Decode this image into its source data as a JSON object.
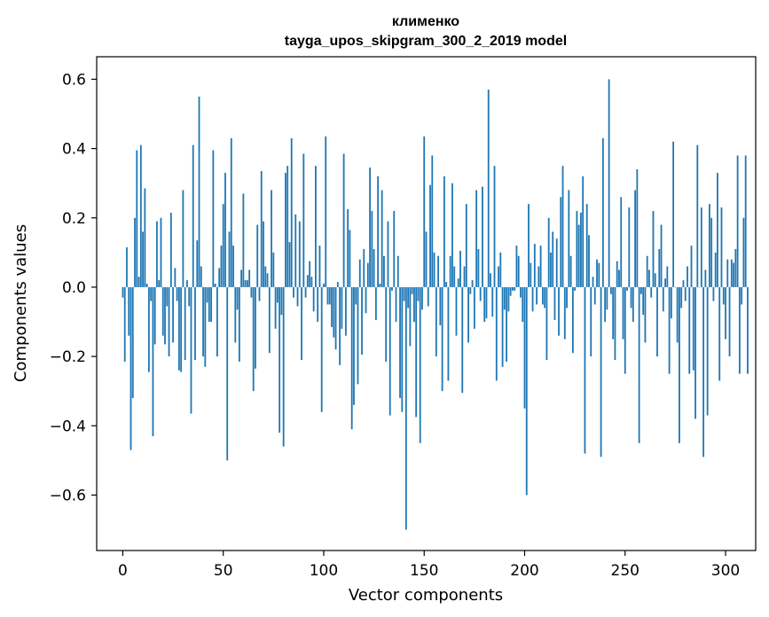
{
  "chart_data": {
    "type": "bar",
    "title": "клименко",
    "subtitle": "tayga_upos_skipgram_300_2_2019 model",
    "xlabel": "Vector components",
    "ylabel": "Components values",
    "xlim": [
      -13,
      315
    ],
    "ylim": [
      -0.76,
      0.665
    ],
    "x_ticks": [
      0,
      50,
      100,
      150,
      200,
      250,
      300
    ],
    "x_tick_labels": [
      "0",
      "50",
      "100",
      "150",
      "200",
      "250",
      "300"
    ],
    "y_ticks": [
      -0.6,
      -0.4,
      -0.2,
      0.0,
      0.2,
      0.4,
      0.6
    ],
    "y_tick_labels": [
      "−0.6",
      "−0.4",
      "−0.2",
      "0.0",
      "0.2",
      "0.4",
      "0.6"
    ],
    "bar_color": "#1f77b4",
    "values": [
      -0.03,
      -0.215,
      0.115,
      -0.14,
      -0.47,
      -0.32,
      0.2,
      0.395,
      0.03,
      0.41,
      0.16,
      0.285,
      0.01,
      -0.245,
      -0.04,
      -0.43,
      -0.165,
      0.19,
      0.02,
      0.2,
      -0.14,
      -0.165,
      -0.055,
      -0.2,
      0.215,
      -0.16,
      0.055,
      -0.04,
      -0.24,
      -0.245,
      0.28,
      -0.21,
      0.02,
      -0.055,
      -0.365,
      0.41,
      -0.21,
      0.135,
      0.55,
      0.06,
      -0.2,
      -0.23,
      -0.045,
      -0.1,
      -0.1,
      0.395,
      0.01,
      -0.2,
      0.055,
      0.12,
      0.24,
      0.33,
      -0.5,
      0.16,
      0.43,
      0.12,
      -0.16,
      -0.065,
      -0.215,
      0.05,
      0.27,
      0.02,
      0.02,
      0.05,
      -0.03,
      -0.3,
      -0.235,
      0.18,
      -0.04,
      0.335,
      0.19,
      0.06,
      0.04,
      -0.19,
      0.28,
      0.1,
      -0.12,
      -0.045,
      -0.42,
      -0.08,
      -0.46,
      0.33,
      0.35,
      0.13,
      0.43,
      -0.03,
      0.21,
      -0.055,
      0.19,
      -0.21,
      0.385,
      -0.03,
      0.035,
      0.075,
      0.03,
      -0.07,
      0.35,
      -0.1,
      0.12,
      -0.36,
      0.01,
      0.435,
      -0.05,
      -0.05,
      -0.115,
      -0.145,
      -0.18,
      0.015,
      -0.225,
      -0.12,
      0.385,
      -0.14,
      0.225,
      0.165,
      -0.41,
      -0.34,
      -0.05,
      -0.28,
      0.08,
      -0.195,
      0.11,
      -0.075,
      0.07,
      0.345,
      0.22,
      0.11,
      -0.095,
      0.32,
      0.01,
      0.28,
      0.09,
      -0.215,
      0.19,
      -0.37,
      -0.01,
      0.22,
      -0.1,
      0.09,
      -0.32,
      -0.36,
      -0.04,
      -0.7,
      -0.06,
      -0.17,
      -0.02,
      -0.1,
      -0.375,
      -0.04,
      -0.45,
      -0.065,
      0.435,
      0.16,
      -0.055,
      0.295,
      0.38,
      0.1,
      -0.2,
      0.09,
      -0.11,
      -0.3,
      0.32,
      0.015,
      -0.27,
      0.09,
      0.3,
      0.06,
      -0.14,
      0.025,
      0.105,
      -0.305,
      0.06,
      0.24,
      -0.16,
      -0.02,
      0.02,
      -0.12,
      0.28,
      0.11,
      -0.04,
      0.29,
      -0.1,
      -0.09,
      0.57,
      0.04,
      -0.085,
      0.35,
      -0.27,
      0.06,
      0.1,
      -0.23,
      -0.065,
      -0.215,
      -0.07,
      -0.025,
      -0.01,
      -0.01,
      0.12,
      0.09,
      -0.03,
      -0.1,
      -0.35,
      -0.6,
      0.24,
      0.07,
      -0.07,
      0.125,
      -0.05,
      0.06,
      0.12,
      -0.05,
      -0.06,
      -0.21,
      0.2,
      0.1,
      0.16,
      -0.095,
      0.14,
      -0.14,
      0.26,
      0.35,
      -0.15,
      -0.06,
      0.28,
      0.09,
      -0.19,
      -0.01,
      0.22,
      0.18,
      0.215,
      0.32,
      -0.48,
      0.24,
      0.15,
      -0.2,
      0.03,
      -0.05,
      0.08,
      0.07,
      -0.49,
      0.43,
      -0.1,
      -0.065,
      0.6,
      -0.02,
      -0.15,
      -0.21,
      0.075,
      0.05,
      0.26,
      -0.15,
      -0.25,
      -0.01,
      0.23,
      -0.06,
      -0.1,
      0.28,
      0.34,
      -0.45,
      -0.02,
      -0.08,
      -0.16,
      0.09,
      0.05,
      -0.03,
      0.22,
      0.04,
      -0.2,
      0.11,
      0.18,
      -0.07,
      0.025,
      0.06,
      -0.25,
      -0.09,
      0.42,
      0.0,
      -0.16,
      -0.45,
      -0.06,
      0.02,
      -0.04,
      0.06,
      -0.25,
      0.12,
      -0.24,
      -0.38,
      0.41,
      0.0,
      0.23,
      -0.49,
      0.05,
      -0.37,
      0.24,
      0.2,
      -0.04,
      0.1,
      0.33,
      -0.27,
      0.23,
      -0.05,
      -0.15,
      0.08,
      -0.2,
      0.08,
      0.07,
      0.11,
      0.38,
      -0.25,
      -0.05,
      0.2,
      0.38,
      -0.25
    ]
  }
}
